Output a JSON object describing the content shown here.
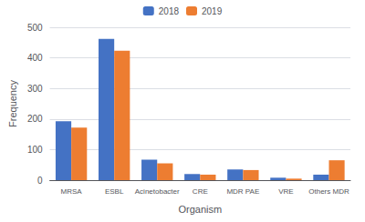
{
  "chart_data": {
    "type": "bar",
    "xlabel": "Organism",
    "ylabel": "Frequency",
    "categories": [
      "MRSA",
      "ESBL",
      "Acinetobacter",
      "CRE",
      "MDR PAE",
      "VRE",
      "Others MDR"
    ],
    "series": [
      {
        "name": "2018",
        "color": "#4472C4",
        "values": [
          193,
          462,
          67,
          20,
          35,
          8,
          18
        ]
      },
      {
        "name": "2019",
        "color": "#ED7D31",
        "values": [
          172,
          423,
          55,
          18,
          33,
          5,
          65
        ]
      }
    ],
    "ylim": [
      0,
      500
    ],
    "yticks": [
      0,
      100,
      200,
      300,
      400,
      500
    ],
    "grid": true,
    "legend": "top"
  }
}
